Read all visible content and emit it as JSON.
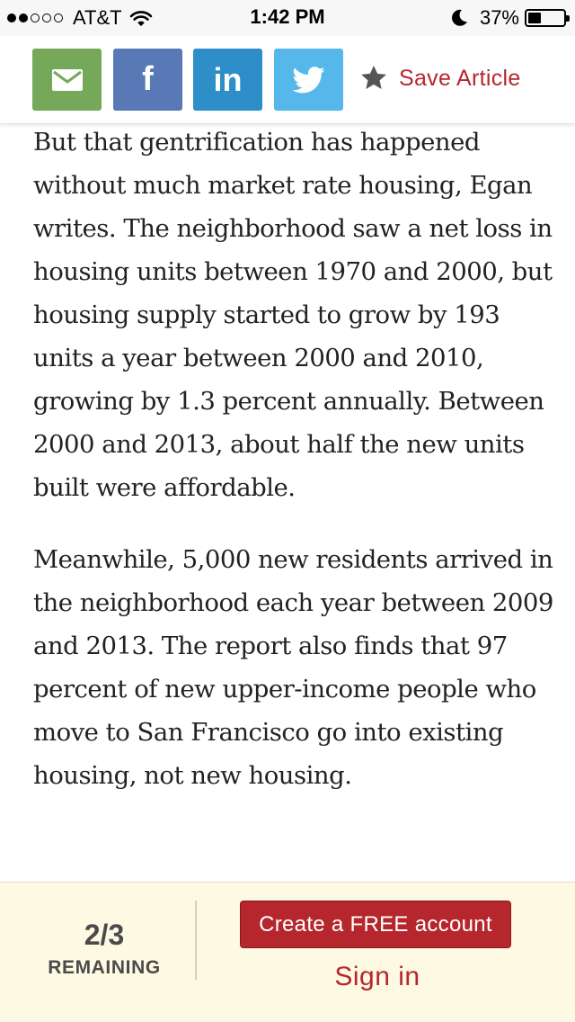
{
  "status_bar": {
    "signal_dots_filled": 2,
    "signal_dots_total": 5,
    "carrier": "AT&T",
    "time": "1:42 PM",
    "battery_percent": "37%",
    "battery_level": 0.37
  },
  "share_bar": {
    "buttons": [
      {
        "name": "email",
        "icon": "envelope-icon",
        "color": "#76a85a"
      },
      {
        "name": "facebook",
        "icon": "facebook-icon",
        "label": "f",
        "color": "#5978b6"
      },
      {
        "name": "linkedin",
        "icon": "linkedin-icon",
        "label": "in",
        "color": "#2d8ec8"
      },
      {
        "name": "twitter",
        "icon": "twitter-icon",
        "color": "#56b8ea"
      }
    ],
    "save_label": "Save Article",
    "save_icon": "star-icon",
    "save_icon_color": "#555555",
    "save_color": "#b5272d"
  },
  "article": {
    "paragraphs": [
      "But that gentrification has happened without much market rate housing, Egan writes. The neighborhood saw a net loss in housing units between 1970 and 2000, but housing supply started to grow by 193 units a year between 2000 and 2010, growing by 1.3 percent annually. Between 2000 and 2013, about half the new units built were affordable.",
      "Meanwhile, 5,000 new residents arrived in the neighborhood each year between 2009 and 2013. The report also finds that 97 percent of new upper-income people who move to San Francisco go into existing housing, not new housing."
    ]
  },
  "paywall": {
    "count": "2/3",
    "count_label": "REMAINING",
    "create_account_label": "Create a FREE account",
    "sign_in_label": "Sign in",
    "accent_color": "#b5272d",
    "background_color": "#fdf9e2"
  }
}
